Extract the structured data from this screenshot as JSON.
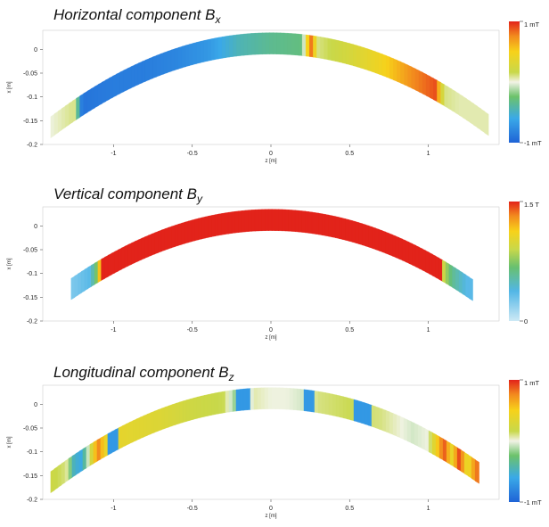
{
  "chart_data": [
    {
      "type": "heatmap",
      "title": "Horizontal  component",
      "title_symbol": "B",
      "title_subscript": "x",
      "xlabel": "z [m]",
      "ylabel": "x [m]",
      "xlim": [
        -1.45,
        1.45
      ],
      "ylim": [
        -0.2,
        0.04
      ],
      "xticks": [
        "-1",
        "-0.5",
        "0",
        "0.5",
        "1"
      ],
      "yticks": [
        "0",
        "-0.05",
        "-0.1",
        "-0.15",
        "-0.2"
      ],
      "colorbar": {
        "max_label": "1 mT",
        "min_label": "-1 mT",
        "min": -1,
        "max": 1,
        "unit": "mT",
        "scale": "jet"
      },
      "profile": {
        "z": [
          -1.4,
          -1.25,
          -1.2,
          -1.0,
          -0.8,
          -0.6,
          -0.4,
          -0.2,
          0.0,
          0.2,
          0.25,
          0.3,
          0.5,
          0.7,
          0.9,
          1.05,
          1.1,
          1.2,
          1.35
        ],
        "value": [
          0.0,
          0.1,
          -0.9,
          -0.85,
          -0.85,
          -0.8,
          -0.7,
          -0.45,
          -0.35,
          -0.3,
          0.9,
          0.1,
          0.25,
          0.45,
          0.75,
          0.9,
          0.1,
          0.05,
          0.05
        ]
      },
      "grid": false
    },
    {
      "type": "heatmap",
      "title": "Vertical component",
      "title_symbol": "B",
      "title_subscript": "y",
      "xlabel": "z [m]",
      "ylabel": "x [m]",
      "xlim": [
        -1.45,
        1.45
      ],
      "ylim": [
        -0.2,
        0.04
      ],
      "xticks": [
        "-1",
        "-0.5",
        "0",
        "0.5",
        "1"
      ],
      "yticks": [
        "0",
        "-0.05",
        "-0.1",
        "-0.15",
        "-0.2"
      ],
      "colorbar": {
        "max_label": "1.5 T",
        "min_label": "0",
        "min": 0,
        "max": 1.5,
        "unit": "T",
        "scale": "jet"
      },
      "profile": {
        "z": [
          -1.25,
          -1.15,
          -1.1,
          -1.08,
          -0.5,
          0.0,
          0.5,
          1.08,
          1.1,
          1.15,
          1.25
        ],
        "value": [
          0.25,
          0.35,
          0.8,
          1.5,
          1.5,
          1.5,
          1.5,
          1.5,
          0.9,
          0.6,
          0.35
        ]
      },
      "grid": false
    },
    {
      "type": "heatmap",
      "title": "Longitudinal  component",
      "title_symbol": "B",
      "title_subscript": "z",
      "xlabel": "z [m]",
      "ylabel": "x [m]",
      "xlim": [
        -1.45,
        1.45
      ],
      "ylim": [
        -0.2,
        0.04
      ],
      "xticks": [
        "-1",
        "-0.5",
        "0",
        "0.5",
        "1"
      ],
      "yticks": [
        "0",
        "-0.05",
        "-0.1",
        "-0.15",
        "-0.2"
      ],
      "colorbar": {
        "max_label": "1 mT",
        "min_label": "-1 mT",
        "min": -1,
        "max": 1,
        "unit": "mT",
        "scale": "jet"
      },
      "profile": {
        "z": [
          -1.4,
          -1.3,
          -1.25,
          -1.2,
          -1.1,
          -1.05,
          -0.9,
          -0.7,
          -0.5,
          -0.3,
          -0.2,
          -0.1,
          0.0,
          0.1,
          0.2,
          0.3,
          0.5,
          0.7,
          0.9,
          1.0,
          1.1,
          1.15,
          1.2,
          1.25,
          1.3
        ],
        "value": [
          0.2,
          0.1,
          -0.5,
          -0.6,
          0.8,
          0.4,
          0.35,
          0.3,
          0.2,
          0.15,
          -0.3,
          0.05,
          0.0,
          0.0,
          -0.05,
          0.1,
          0.15,
          0.1,
          -0.05,
          0.0,
          0.9,
          0.4,
          0.95,
          0.3,
          0.8
        ],
        "stripe_z": [
          -1.0,
          -0.2,
          -0.15,
          0.25,
          0.55,
          0.6
        ]
      },
      "grid": false
    }
  ]
}
